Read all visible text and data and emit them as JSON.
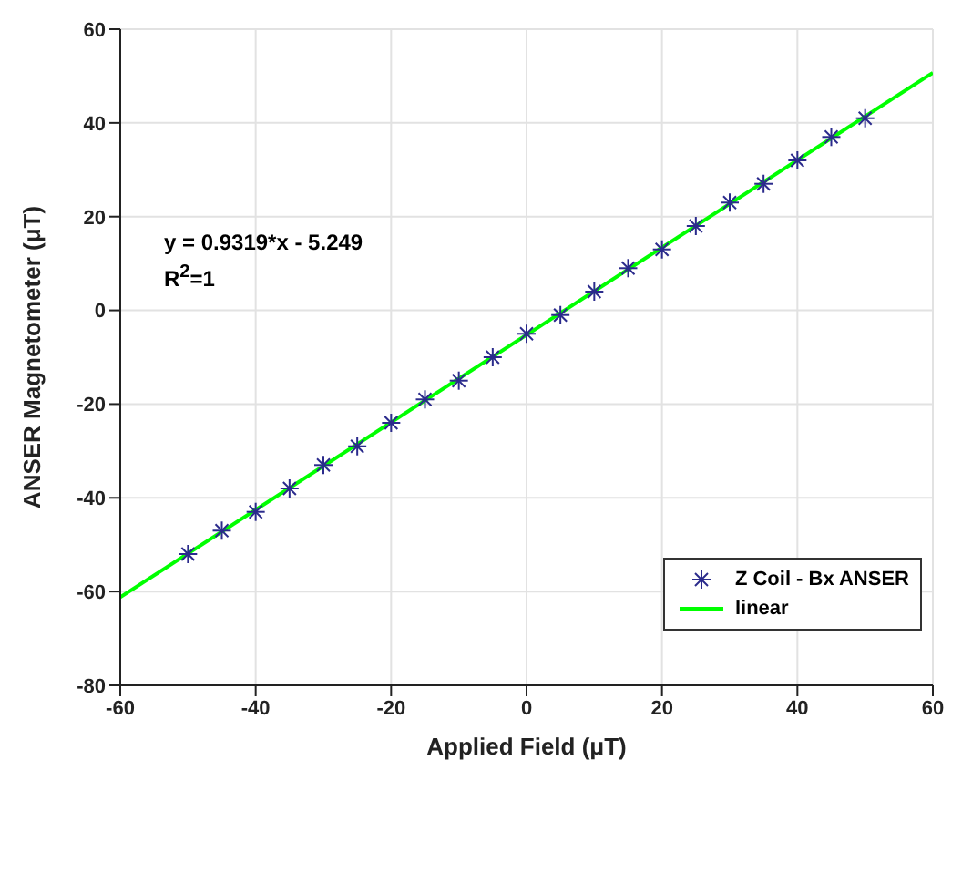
{
  "chart_data": {
    "type": "scatter",
    "xlabel": "Applied Field (μT)",
    "ylabel": "ANSER Magnetometer (μT)",
    "xlim": [
      -60,
      60
    ],
    "xticks": [
      -60,
      -40,
      -20,
      0,
      20,
      40,
      60
    ],
    "ylim": [
      -80,
      60
    ],
    "yticks": [
      -80,
      -60,
      -40,
      -20,
      0,
      20,
      40,
      60
    ],
    "grid": true,
    "legend": "bottom right",
    "annotations": [
      "y = 0.9319*x - 5.249",
      "R$^{2}$=1"
    ],
    "series": [
      {
        "name": "Z Coil - Bx ANSER",
        "marker": "cross",
        "color": "#2b2b8c",
        "x": [
          -50,
          -45,
          -40,
          -35,
          -30,
          -25,
          -20,
          -15,
          -10,
          -5,
          0,
          5,
          10,
          15,
          20,
          25,
          30,
          35,
          40,
          45,
          50
        ],
        "values": [
          -52,
          -47,
          -43,
          -38,
          -33,
          -29,
          -24,
          -19,
          -15,
          -10,
          -5,
          -1,
          4,
          9,
          13,
          18,
          23,
          27,
          32,
          37,
          41
        ]
      },
      {
        "name": "linear",
        "type": "line",
        "color": "#00ff00",
        "x": [
          -60,
          60
        ],
        "values": [
          -61.2,
          50.7
        ]
      }
    ]
  }
}
